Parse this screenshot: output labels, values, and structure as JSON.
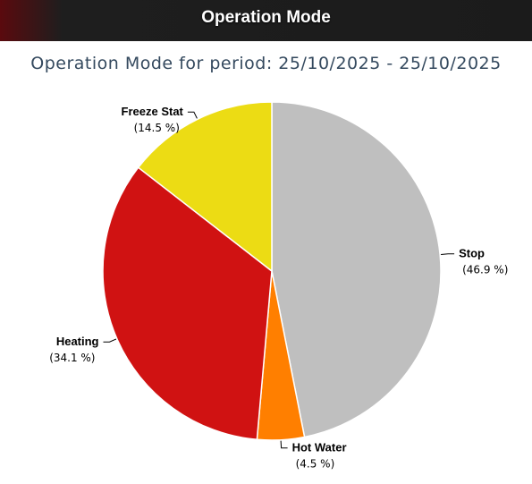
{
  "header": {
    "title": "Operation Mode"
  },
  "chart_data": {
    "type": "pie",
    "title": "Operation Mode for period: 25/10/2025 - 25/10/2025",
    "slices": [
      {
        "label": "Stop",
        "value": 46.9,
        "display": "(46.9 %)",
        "color": "#bfbfbf"
      },
      {
        "label": "Hot Water",
        "value": 4.5,
        "display": "(4.5 %)",
        "color": "#ff7f00"
      },
      {
        "label": "Heating",
        "value": 34.1,
        "display": "(34.1 %)",
        "color": "#d01212"
      },
      {
        "label": "Freeze Stat",
        "value": 14.5,
        "display": "(14.5 %)",
        "color": "#ecdc14"
      }
    ]
  }
}
